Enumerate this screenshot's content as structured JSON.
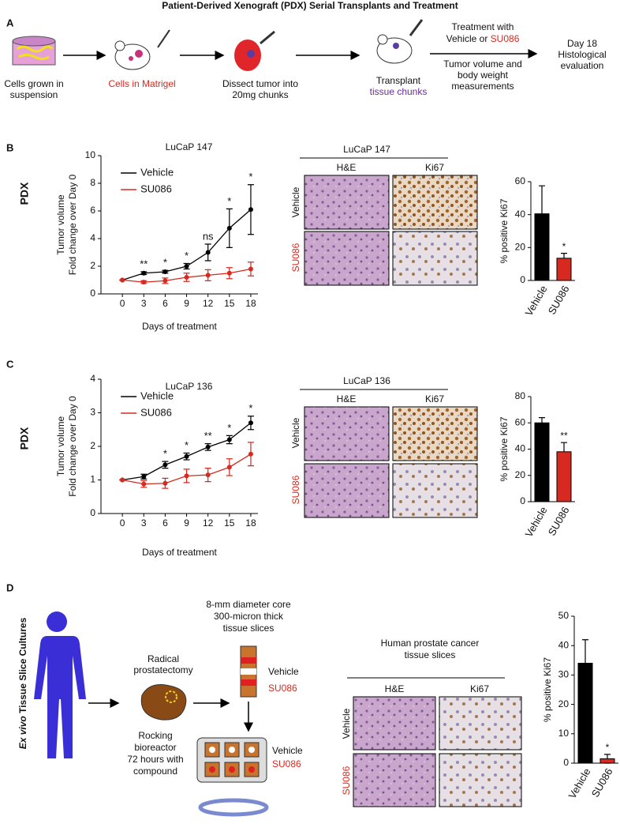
{
  "title": "Patient-Derived Xenograft (PDX) Serial Transplants and Treatment",
  "panel_a": {
    "label": "A",
    "dish": [
      "Cells grown in",
      "suspension"
    ],
    "matrigel": "Cells in Matrigel",
    "dissect": [
      "Dissect tumor into",
      "20mg chunks"
    ],
    "transplant": [
      "Transplant",
      "tissue chunks"
    ],
    "treatment": [
      "Treatment with",
      "Vehicle or",
      "SU086"
    ],
    "measurements": [
      "Tumor volume and",
      "body weight",
      "measurements"
    ],
    "evaluation": [
      "Day 18",
      "Histological",
      "evaluation"
    ]
  },
  "panel_b": {
    "label": "B",
    "model": "PDX",
    "images": {
      "title": "LuCaP 147",
      "columns": [
        "H&E",
        "Ki67"
      ],
      "rows": [
        "Vehicle",
        "SU086"
      ]
    }
  },
  "panel_c": {
    "label": "C",
    "model": "PDX",
    "images": {
      "title": "LuCaP 136",
      "columns": [
        "H&E",
        "Ki67"
      ],
      "rows": [
        "Vehicle",
        "SU086"
      ]
    }
  },
  "panel_d": {
    "label": "D",
    "side_title_italic": "Ex vivo",
    "side_title": "Tissue Slice Cultures",
    "surgery": [
      "Radical",
      "prostatectomy"
    ],
    "core": [
      "8-mm diameter core",
      "300-micron thick",
      "tissue slices"
    ],
    "core_arms": [
      "Vehicle",
      "SU086"
    ],
    "bioreactor": [
      "Rocking",
      "bioreactor",
      "72 hours with",
      "compound"
    ],
    "bioreactor_arms": [
      "Vehicle",
      "SU086"
    ],
    "images": {
      "title": [
        "Human prostate cancer",
        "tissue slices"
      ],
      "columns": [
        "H&E",
        "Ki67"
      ],
      "rows": [
        "Vehicle",
        "SU086"
      ]
    }
  },
  "chart_data": [
    {
      "type": "line",
      "title": "LuCaP 147",
      "x_label": "Days of treatment",
      "y_label": [
        "Tumor volume",
        "Fold change over Day 0"
      ],
      "x": [
        0,
        3,
        6,
        9,
        12,
        15,
        18
      ],
      "xlim": [
        -3,
        19
      ],
      "xticks": [
        0,
        3,
        6,
        9,
        12,
        15,
        18
      ],
      "ylim": [
        0,
        10
      ],
      "yticks": [
        0,
        2,
        4,
        6,
        8,
        10
      ],
      "series": [
        {
          "name": "Vehicle",
          "color": "#000000",
          "values": [
            1,
            1.5,
            1.6,
            2.0,
            3.0,
            4.75,
            6.1
          ],
          "errors": [
            0,
            0.1,
            0.1,
            0.2,
            0.6,
            1.4,
            1.8
          ]
        },
        {
          "name": "SU086",
          "color": "#d62a20",
          "values": [
            1,
            0.85,
            0.95,
            1.2,
            1.35,
            1.5,
            1.8
          ],
          "errors": [
            0,
            0.1,
            0.2,
            0.3,
            0.4,
            0.4,
            0.5
          ]
        }
      ],
      "significance": [
        null,
        "**",
        "*",
        "*",
        "ns",
        "*",
        "*"
      ]
    },
    {
      "type": "bar",
      "y_label": "% positive Ki67",
      "categories": [
        "Vehicle",
        "SU086"
      ],
      "values": [
        40.5,
        13.5
      ],
      "errors": [
        17,
        3
      ],
      "colors": [
        "#000000",
        "#d62a20"
      ],
      "ylim": [
        0,
        60
      ],
      "yticks": [
        0,
        20,
        40,
        60
      ],
      "significance": [
        null,
        "*"
      ]
    },
    {
      "type": "line",
      "title": "LuCaP 136",
      "x_label": "Days of treatment",
      "y_label": [
        "Tumor volume",
        "Fold change over Day 0"
      ],
      "x": [
        0,
        3,
        6,
        9,
        12,
        15,
        18
      ],
      "xlim": [
        -3,
        19
      ],
      "xticks": [
        0,
        3,
        6,
        9,
        12,
        15,
        18
      ],
      "ylim": [
        0,
        4
      ],
      "yticks": [
        0,
        1,
        2,
        3,
        4
      ],
      "series": [
        {
          "name": "Vehicle",
          "color": "#000000",
          "values": [
            1,
            1.1,
            1.45,
            1.7,
            1.98,
            2.2,
            2.7
          ],
          "errors": [
            0,
            0.07,
            0.1,
            0.1,
            0.1,
            0.12,
            0.2
          ]
        },
        {
          "name": "SU086",
          "color": "#d62a20",
          "values": [
            1,
            0.88,
            0.9,
            1.12,
            1.15,
            1.38,
            1.77
          ],
          "errors": [
            0,
            0.1,
            0.15,
            0.2,
            0.2,
            0.25,
            0.35
          ]
        }
      ],
      "significance": [
        null,
        null,
        "*",
        "*",
        "**",
        "*",
        "*"
      ]
    },
    {
      "type": "bar",
      "y_label": "% positive Ki67",
      "categories": [
        "Vehicle",
        "SU086"
      ],
      "values": [
        60,
        38
      ],
      "errors": [
        4,
        7
      ],
      "colors": [
        "#000000",
        "#d62a20"
      ],
      "ylim": [
        0,
        80
      ],
      "yticks": [
        0,
        20,
        40,
        60,
        80
      ],
      "significance": [
        null,
        "**"
      ]
    },
    {
      "type": "bar",
      "y_label": "% positive Ki67",
      "categories": [
        "Vehicle",
        "SU086"
      ],
      "values": [
        34,
        1.5
      ],
      "errors": [
        8,
        1.5
      ],
      "colors": [
        "#000000",
        "#d62a20"
      ],
      "ylim": [
        0,
        50
      ],
      "yticks": [
        0,
        10,
        20,
        30,
        40,
        50
      ],
      "significance": [
        null,
        "*"
      ]
    }
  ]
}
